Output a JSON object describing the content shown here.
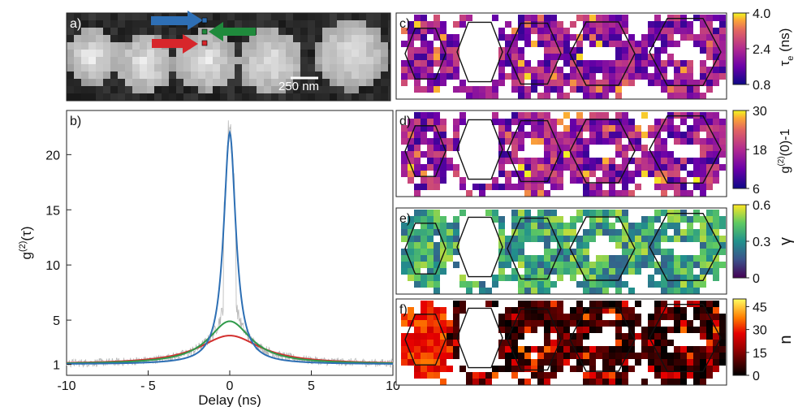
{
  "panel_a": {
    "label": "a)",
    "scale_label": "250 nm",
    "arrow_colors": [
      "#2e6fb5",
      "#1f8a3c",
      "#d7262b"
    ]
  },
  "chart_data": [
    {
      "type": "line",
      "panel": "b)",
      "xlabel": "Delay (ns)",
      "ylabel": "g(2)(τ)",
      "xlim": [
        -10,
        10
      ],
      "ylim": [
        0,
        24
      ],
      "xticks": [
        -10,
        -5,
        0,
        5,
        10
      ],
      "xtick_labels": [
        "-10",
        "- 5",
        "0",
        "5",
        "10"
      ],
      "yticks": [
        1,
        5,
        10,
        15,
        20
      ],
      "grid": false,
      "series": [
        {
          "color": "#2d6fb4",
          "model": "lorentzian",
          "peak": 22,
          "baseline": 1,
          "width_ns": 0.45
        },
        {
          "color": "#2f9a4a",
          "model": "lorentzian",
          "peak": 4.9,
          "baseline": 1,
          "width_ns": 1.6
        },
        {
          "color": "#d3302f",
          "model": "lorentzian",
          "peak": 3.6,
          "baseline": 1,
          "width_ns": 2.3
        },
        {
          "color": "#b7b7b7",
          "model": "noisy-data",
          "peak": 22.5,
          "baseline": 1
        }
      ]
    },
    {
      "type": "heatmap",
      "panel": "c)",
      "colorbar_label": "τe (ns)",
      "colorbar_ticks": [
        "4.0",
        "2.4",
        "0.8"
      ],
      "range": [
        0.8,
        4.0
      ],
      "colormap": "plasma"
    },
    {
      "type": "heatmap",
      "panel": "d)",
      "colorbar_label": "g(2)(0)-1",
      "colorbar_ticks": [
        "30",
        "18",
        "6"
      ],
      "range": [
        6,
        30
      ],
      "colormap": "plasma"
    },
    {
      "type": "heatmap",
      "panel": "e)",
      "colorbar_label": "γ",
      "colorbar_ticks": [
        "0.6",
        "0.3",
        "0"
      ],
      "range": [
        0,
        0.6
      ],
      "colormap": "viridis"
    },
    {
      "type": "heatmap",
      "panel": "f)",
      "colorbar_label": "n",
      "colorbar_ticks": [
        "45",
        "30",
        "15",
        "0"
      ],
      "range": [
        0,
        50
      ],
      "colormap": "hot"
    }
  ]
}
